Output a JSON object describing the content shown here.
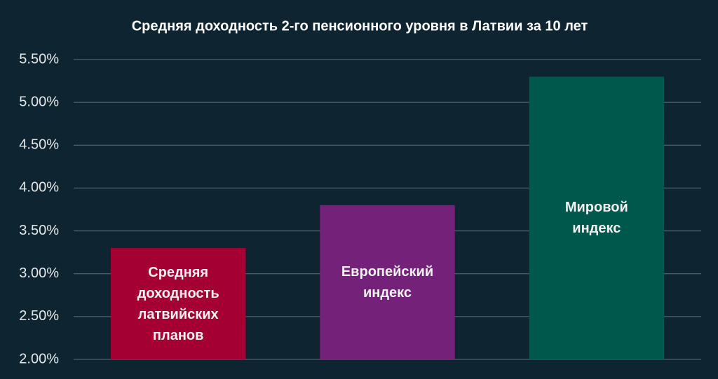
{
  "chart_data": {
    "type": "bar",
    "title": "Средняя доходность 2-го пенсионного уровня в Латвии за 10 лет",
    "categories": [
      "Средняя доходность латвийских планов",
      "Европейский индекс",
      "Мировой индекс"
    ],
    "values": [
      3.3,
      3.8,
      5.3
    ],
    "colors": [
      "#a50034",
      "#74217a",
      "#00574b"
    ],
    "ylim": [
      2,
      5.5
    ],
    "yticks": [
      {
        "value": 2,
        "label": "2.00%"
      },
      {
        "value": 2.5,
        "label": "2.50%"
      },
      {
        "value": 3,
        "label": "3.00%"
      },
      {
        "value": 3.5,
        "label": "3.50%"
      },
      {
        "value": 4,
        "label": "4.00%"
      },
      {
        "value": 4.5,
        "label": "4.50%"
      },
      {
        "value": 5,
        "label": "5.00%"
      },
      {
        "value": 5.5,
        "label": "5.50%"
      }
    ],
    "grid": true
  }
}
